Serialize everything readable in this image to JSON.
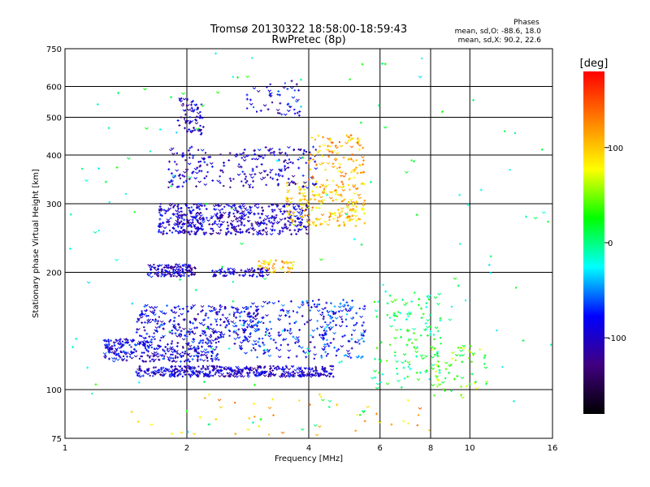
{
  "chart_data": {
    "type": "scatter",
    "title": "Tromsø 20130322 18:58:00-18:59:43",
    "subtitle": "RwPretec (8p)",
    "xlabel": "Frequency [MHz]",
    "ylabel": "Stationary phase Virtual Height [km]",
    "x_scale": "log",
    "y_scale": "log",
    "xlim": [
      1,
      16
    ],
    "ylim": [
      75,
      750
    ],
    "x_ticks": [
      1,
      2,
      4,
      6,
      8,
      10,
      16
    ],
    "y_ticks": [
      75,
      100,
      200,
      300,
      400,
      500,
      600,
      750
    ],
    "grid": true,
    "phase_stats": {
      "heading": "Phases",
      "line1": "mean, sd,O: -88.6, 18.0",
      "line2": "mean, sd,X:  90.2, 22.6"
    },
    "colorbar": {
      "label": "[deg]",
      "min": -180,
      "max": 180,
      "ticks": [
        100,
        0,
        -100
      ],
      "colors": [
        "#ff0000",
        "#ff8000",
        "#ffff00",
        "#00ff00",
        "#00ffff",
        "#0000ff",
        "#400080",
        "#000000"
      ]
    },
    "series": [
      {
        "x_range": [
          1.5,
          4.6
        ],
        "y_range": [
          108,
          115
        ],
        "phase": -100,
        "count": 420
      },
      {
        "x_range": [
          1.25,
          2.4
        ],
        "y_range": [
          118,
          135
        ],
        "phase": -90,
        "count": 300
      },
      {
        "x_range": [
          1.5,
          3.0
        ],
        "y_range": [
          135,
          165
        ],
        "phase": -90,
        "count": 260
      },
      {
        "x_range": [
          2.6,
          4.4
        ],
        "y_range": [
          120,
          170
        ],
        "phase": -80,
        "count": 180
      },
      {
        "x_range": [
          4.3,
          5.5
        ],
        "y_range": [
          120,
          170
        ],
        "phase": -70,
        "count": 120
      },
      {
        "x_range": [
          1.6,
          2.1
        ],
        "y_range": [
          195,
          210
        ],
        "phase": -100,
        "count": 120
      },
      {
        "x_range": [
          2.3,
          3.2
        ],
        "y_range": [
          195,
          205
        ],
        "phase": -100,
        "count": 70
      },
      {
        "x_range": [
          3.0,
          3.7
        ],
        "y_range": [
          200,
          215
        ],
        "phase": 100,
        "count": 40
      },
      {
        "x_range": [
          1.7,
          4.0
        ],
        "y_range": [
          250,
          300
        ],
        "phase": -100,
        "count": 500
      },
      {
        "x_range": [
          3.5,
          5.5
        ],
        "y_range": [
          260,
          340
        ],
        "phase": 100,
        "count": 200
      },
      {
        "x_range": [
          1.8,
          4.2
        ],
        "y_range": [
          330,
          420
        ],
        "phase": -100,
        "count": 220
      },
      {
        "x_range": [
          4.0,
          5.5
        ],
        "y_range": [
          340,
          450
        ],
        "phase": 110,
        "count": 100
      },
      {
        "x_range": [
          1.9,
          2.2
        ],
        "y_range": [
          450,
          560
        ],
        "phase": -100,
        "count": 70
      },
      {
        "x_range": [
          2.8,
          3.8
        ],
        "y_range": [
          500,
          620
        ],
        "phase": -90,
        "count": 50
      },
      {
        "x_range": [
          5.8,
          8.5
        ],
        "y_range": [
          100,
          180
        ],
        "phase": 10,
        "count": 130
      },
      {
        "x_range": [
          8.0,
          11.0
        ],
        "y_range": [
          95,
          130
        ],
        "phase": 40,
        "count": 60
      },
      {
        "x_range": [
          1.4,
          8.0
        ],
        "y_range": [
          76,
          98
        ],
        "phase": 110,
        "count": 45
      },
      {
        "x_range": [
          1.0,
          16.0
        ],
        "y_range": [
          75,
          750
        ],
        "phase": 0,
        "count": 140
      }
    ]
  }
}
